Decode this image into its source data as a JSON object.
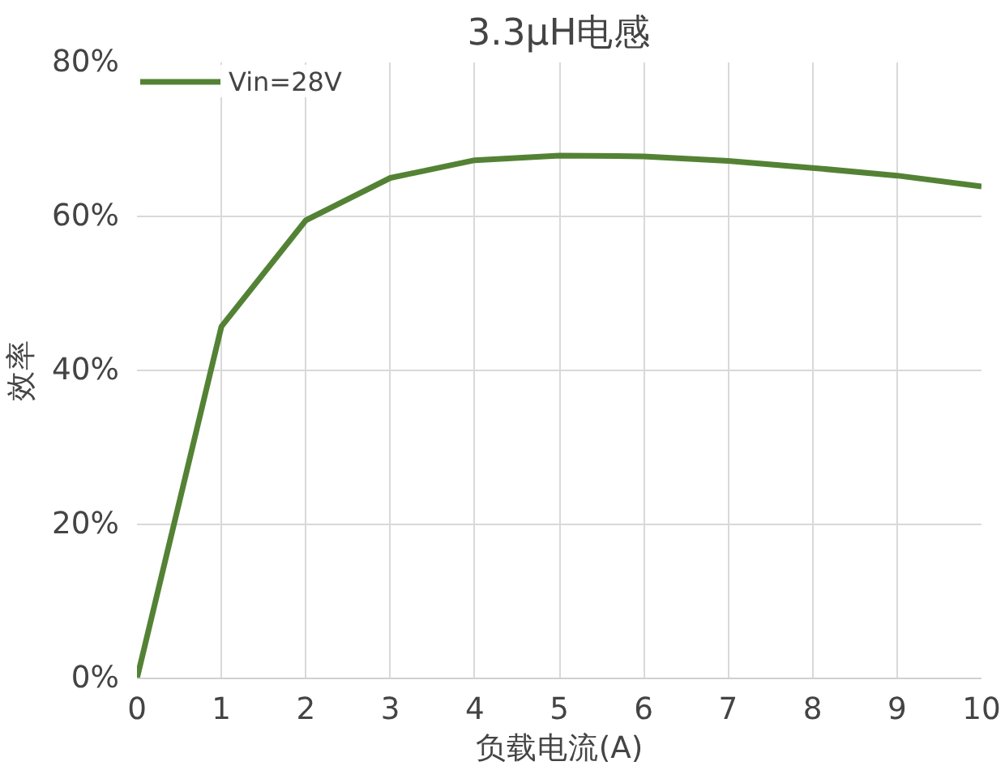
{
  "chart_data": {
    "type": "line",
    "title": "3.3μH电感",
    "xlabel": "负载电流(A)",
    "ylabel": "效率",
    "x": [
      0,
      1,
      2,
      3,
      4,
      5,
      6,
      7,
      8,
      9,
      10
    ],
    "series": [
      {
        "name": "Vin=28V",
        "color": "#548235",
        "values": [
          0,
          45.7,
          59.5,
          65.0,
          67.3,
          67.9,
          67.8,
          67.2,
          66.3,
          65.3,
          63.9
        ]
      }
    ],
    "xlim": [
      0,
      10
    ],
    "xticks": [
      0,
      1,
      2,
      3,
      4,
      5,
      6,
      7,
      8,
      9,
      10
    ],
    "ylim": [
      0,
      80
    ],
    "yticks": [
      {
        "value": 0,
        "label": "0%"
      },
      {
        "value": 20,
        "label": "20%"
      },
      {
        "value": 40,
        "label": "40%"
      },
      {
        "value": 60,
        "label": "60%"
      },
      {
        "value": 80,
        "label": "80%"
      }
    ],
    "grid": true,
    "legend": "top left",
    "marker": "none",
    "line_style": "solid"
  }
}
